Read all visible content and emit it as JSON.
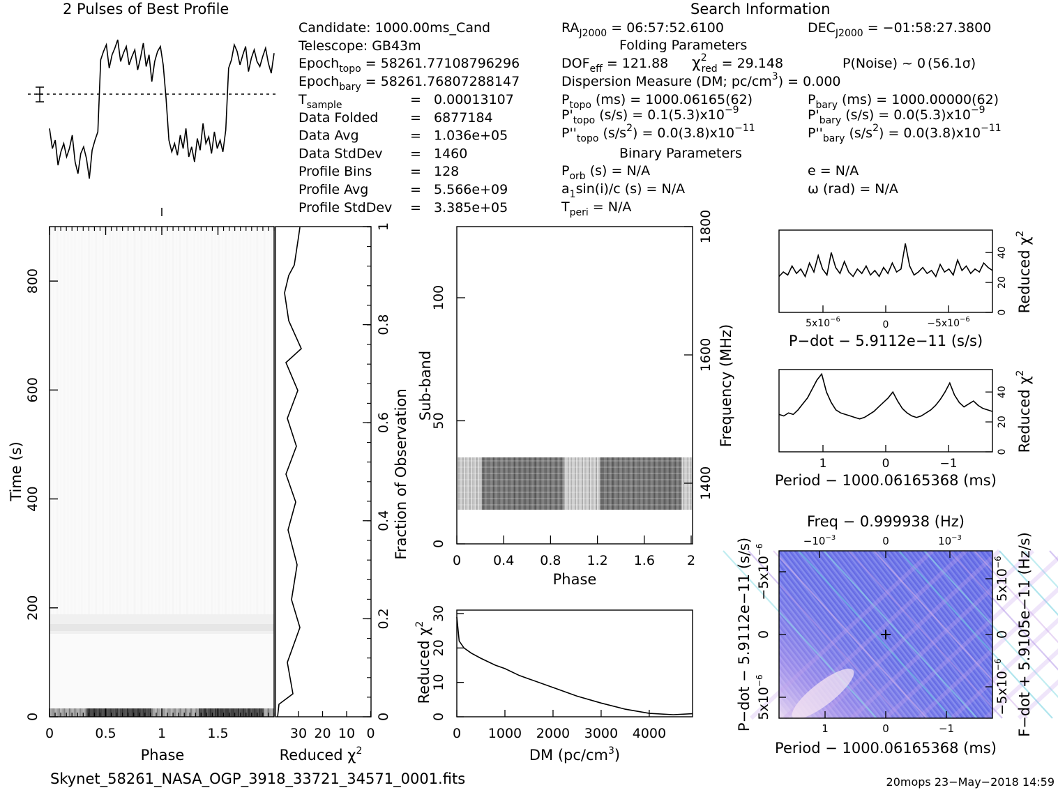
{
  "profile_title": "2 Pulses of Best Profile",
  "search_title": "Search Information",
  "candidate_info": {
    "candidate": "Candidate:  1000.00ms_Cand",
    "telescope": "Telescope:  GB43m",
    "epoch_topo": "Epoch",
    "epoch_topo_sub": "topo",
    "epoch_topo_val": " = 58261.77108796296",
    "epoch_bary": "Epoch",
    "epoch_bary_sub": "bary",
    "epoch_bary_val": " = 58261.76807288147",
    "rows": [
      {
        "label": "T",
        "sub": "sample",
        "value": "0.00013107"
      },
      {
        "label": "Data Folded",
        "sub": "",
        "value": "6877184"
      },
      {
        "label": "Data Avg",
        "sub": "",
        "value": "1.036e+05"
      },
      {
        "label": "Data StdDev",
        "sub": "",
        "value": "1460"
      },
      {
        "label": "Profile Bins",
        "sub": "",
        "value": "128"
      },
      {
        "label": "Profile Avg",
        "sub": "",
        "value": "5.566e+09"
      },
      {
        "label": "Profile StdDev",
        "sub": "",
        "value": "3.385e+05"
      }
    ],
    "equals": "="
  },
  "search_info": {
    "ra_label": "RA",
    "ra_sub": "J2000",
    "ra_val": " = 06:57:52.6100",
    "dec_label": "DEC",
    "dec_sub": "J2000",
    "dec_val": " = −01:58:27.3800",
    "folding_title": "Folding Parameters",
    "dof": "DOF",
    "dof_sub": "eff",
    "dof_val": " = 121.88",
    "chi": "χ",
    "chi_sup": "2",
    "chi_sub": "red",
    "chi_val": " = 29.148",
    "pnoise": "P(Noise) ~ 0",
    "sigma": "(56.1σ)",
    "dm_line_a": "Dispersion Measure (DM; pc/cm",
    "dm_line_sup": "3",
    "dm_line_b": ") = 0.000",
    "p_topo": "P",
    "p_topo_sub": "topo",
    "p_topo_val": " (ms) =  1000.06165(62)",
    "p_bary": "P",
    "p_bary_sub": "bary",
    "p_bary_val": " (ms) =  1000.00000(62)",
    "pd_topo": "P'",
    "pd_topo_sub": "topo",
    "pd_topo_val": " (s/s) =  0.1(5.3)x10",
    "pd_topo_exp": "−9",
    "pd_bary": "P'",
    "pd_bary_sub": "bary",
    "pd_bary_val": " (s/s) = 0.0(5.3)x10",
    "pd_bary_exp": "−9",
    "pdd_topo": "P''",
    "pdd_topo_sub": "topo",
    "pdd_topo_val": " (s/s",
    "pdd_topo_sup": "2",
    "pdd_topo_val2": ") = 0.0(3.8)x10",
    "pdd_topo_exp": "−11",
    "pdd_bary": "P''",
    "pdd_bary_sub": "bary",
    "pdd_bary_val": " (s/s",
    "pdd_bary_sup": "2",
    "pdd_bary_val2": ") = 0.0(3.8)x10",
    "pdd_bary_exp": "−11",
    "binary_title": "Binary Parameters",
    "porb": "P",
    "porb_sub": "orb",
    "porb_val": " (s) = N/A",
    "ecc": "e = N/A",
    "a1": "a",
    "a1_sub": "1",
    "a1_val": "sin(i)/c (s) = N/A",
    "omega": "ω (rad) = N/A",
    "tperi": "T",
    "tperi_sub": "peri",
    "tperi_val": " = N/A"
  },
  "footer": {
    "filename": "Skynet_58261_NASA_OGP_3918_33721_34571_0001.fits",
    "stamp": "20mops 23−May−2018 14:59"
  },
  "axis_labels": {
    "time_y": "Time (s)",
    "phase_x": "Phase",
    "reduced_chi_x": "Reduced χ",
    "reduced_chi_sup": "2",
    "fraction_obs": "Fraction of Observation",
    "subband_y": "Sub-band",
    "frequency_y": "Frequency (MHz)",
    "subband_x": "Phase",
    "dm_x": "DM (pc/cm",
    "dm_x_sup": "3",
    "dm_x_end": ")",
    "dm_y": "Reduced χ",
    "pdot_x": "P−dot − 5.9112e−11 (s/s)",
    "pdot_y": "Reduced χ",
    "period_x": "Period − 1000.06165368 (ms)",
    "period_y": "Reduced χ",
    "freq_top": "Freq − 0.999938 (Hz)",
    "ppdot_x": "Period − 1000.06165368 (ms)",
    "ppdot_y": "P−dot − 5.9112e−11 (s/s)",
    "fdot_y": "F−dot + 5.9105e−11 (Hz/s)"
  },
  "ticks": {
    "time_y": [
      "0",
      "200",
      "400",
      "600",
      "800"
    ],
    "phase_x": [
      "0",
      "0.5",
      "1",
      "1.5"
    ],
    "chi_x": [
      "30",
      "20",
      "10",
      "0"
    ],
    "frac_y": [
      "0",
      "0.2",
      "0.4",
      "0.6",
      "0.8",
      "1"
    ],
    "subband_y": [
      "0",
      "50",
      "100"
    ],
    "subband_x": [
      "0",
      "0.4",
      "0.8",
      "1.2",
      "1.6",
      "2"
    ],
    "freq_y": [
      "1400",
      "1600",
      "1800"
    ],
    "dm_x": [
      "0",
      "1000",
      "2000",
      "3000",
      "4000"
    ],
    "dm_y": [
      "0",
      "10",
      "20",
      "30"
    ],
    "chi_small_y": [
      "0",
      "20",
      "40"
    ],
    "pdot_x": [
      "5x10",
      "0",
      "−5x10"
    ],
    "pdot_x_exp": "−6",
    "period_x": [
      "1",
      "0",
      "−1"
    ],
    "freq_top": [
      "−10",
      "0",
      "10"
    ],
    "freq_top_exp": "−3",
    "ppdot_y": [
      "−5x10",
      "0",
      "5x10"
    ],
    "ppdot_y_exp": "−6",
    "fdot_y": [
      "5x10",
      "0",
      "−5x10"
    ],
    "fdot_y_exp": "−6"
  },
  "chart_data": [
    {
      "type": "line",
      "title": "2 Pulses of Best Profile",
      "xlabel": "",
      "ylabel": "",
      "description_values": "profile intensity over 2 pulse periods (relative units)",
      "x_range": [
        0,
        2
      ],
      "series": [
        {
          "values": [
            0.42,
            0.3,
            0.35,
            0.2,
            0.28,
            0.33,
            0.25,
            0.3,
            0.38,
            0.22,
            0.15,
            0.27,
            0.31,
            0.24,
            0.12,
            0.29,
            0.35,
            0.4,
            0.83,
            0.88,
            0.92,
            0.78,
            0.86,
            0.9,
            0.95,
            0.82,
            0.87,
            0.91,
            0.8,
            0.85,
            0.89,
            0.77,
            0.84,
            0.93,
            0.79,
            0.86,
            0.7,
            0.82,
            0.88,
            0.91,
            0.8,
            0.6,
            0.35,
            0.28,
            0.33,
            0.26,
            0.38,
            0.3,
            0.42,
            0.25,
            0.31,
            0.22,
            0.36,
            0.29,
            0.45,
            0.33,
            0.37,
            0.27,
            0.4,
            0.3,
            0.35,
            0.28,
            0.41,
            0.78,
            0.83,
            0.92,
            0.88,
            0.8,
            0.86,
            0.91,
            0.76,
            0.84,
            0.89,
            0.82,
            0.79,
            0.85,
            0.9,
            0.81,
            0.75,
            0.87
          ]
        }
      ]
    },
    {
      "type": "line",
      "title": "",
      "xlabel": "DM (pc/cm3)",
      "ylabel": "Reduced chi2",
      "xlim": [
        0,
        4900
      ],
      "ylim": [
        0,
        31
      ],
      "x": [
        0,
        50,
        150,
        300,
        500,
        800,
        1000,
        1300,
        1500,
        2000,
        2500,
        3000,
        3500,
        4000,
        4500,
        4900
      ],
      "values": [
        29,
        22,
        20,
        18.5,
        17,
        15,
        14,
        12,
        11,
        8.5,
        6,
        4,
        2.2,
        1,
        0.6,
        0.9
      ]
    },
    {
      "type": "line",
      "title": "",
      "xlabel": "P-dot - 5.9112e-11 (s/s)",
      "ylabel": "Reduced chi2",
      "ylim": [
        0,
        55
      ],
      "description_values": "reduced chi2 vs p-dot offset",
      "values": [
        24,
        27,
        25,
        31,
        26,
        29,
        24,
        33,
        27,
        38,
        29,
        25,
        40,
        30,
        26,
        34,
        27,
        24,
        29,
        26,
        31,
        25,
        28,
        24,
        30,
        26,
        33,
        27,
        29,
        46,
        31,
        25,
        27,
        30,
        26,
        28,
        24,
        32,
        27,
        29,
        25,
        35,
        28,
        31,
        26,
        29,
        27,
        33,
        30,
        28
      ]
    },
    {
      "type": "line",
      "title": "",
      "xlabel": "Period - 1000.06165368 (ms)",
      "ylabel": "Reduced chi2",
      "ylim": [
        0,
        55
      ],
      "description_values": "reduced chi2 vs period offset",
      "values": [
        25,
        24,
        26,
        25,
        28,
        32,
        36,
        42,
        48,
        52,
        40,
        33,
        28,
        26,
        25,
        24,
        23,
        22,
        23,
        25,
        27,
        30,
        33,
        36,
        40,
        34,
        29,
        26,
        24,
        23,
        24,
        26,
        28,
        31,
        35,
        40,
        46,
        38,
        33,
        30,
        32,
        34,
        31,
        29,
        28,
        27
      ]
    }
  ]
}
